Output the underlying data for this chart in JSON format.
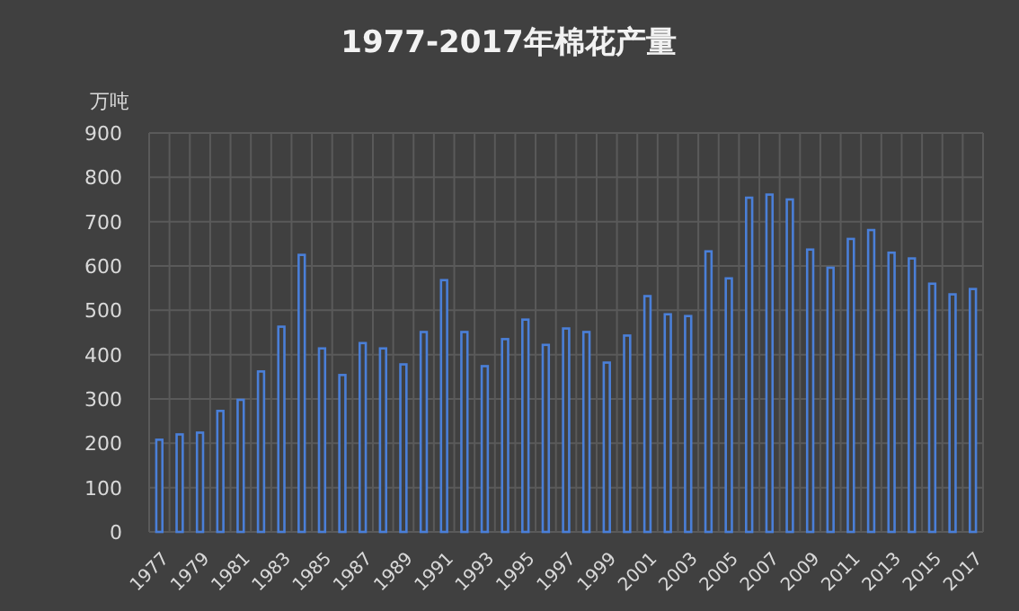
{
  "chart_data": {
    "type": "bar",
    "title": "1977-2017年棉花产量",
    "ylabel": "万吨",
    "categories": [
      "1977",
      null,
      "1979",
      null,
      "1981",
      null,
      "1983",
      null,
      "1985",
      null,
      "1987",
      null,
      "1989",
      null,
      "1991",
      null,
      "1993",
      null,
      "1995",
      null,
      "1997",
      null,
      "1999",
      null,
      "2001",
      null,
      "2003",
      null,
      "2005",
      null,
      "2007",
      null,
      "2009",
      null,
      "2011",
      null,
      "2013",
      null,
      "2015",
      null,
      "2017"
    ],
    "series": [
      {
        "color": "#4a7fd8",
        "values": [
          208,
          220,
          224,
          273,
          298,
          362,
          463,
          625,
          414,
          354,
          426,
          414,
          378,
          451,
          568,
          451,
          374,
          435,
          479,
          422,
          459,
          451,
          382,
          443,
          532,
          491,
          487,
          633,
          572,
          754,
          761,
          750,
          637,
          596,
          661,
          681,
          630,
          617,
          560,
          536,
          548
        ]
      }
    ],
    "ylim": [
      0,
      900
    ],
    "yticks": [
      0,
      100,
      200,
      300,
      400,
      500,
      600,
      700,
      800,
      900
    ],
    "grid": true
  }
}
